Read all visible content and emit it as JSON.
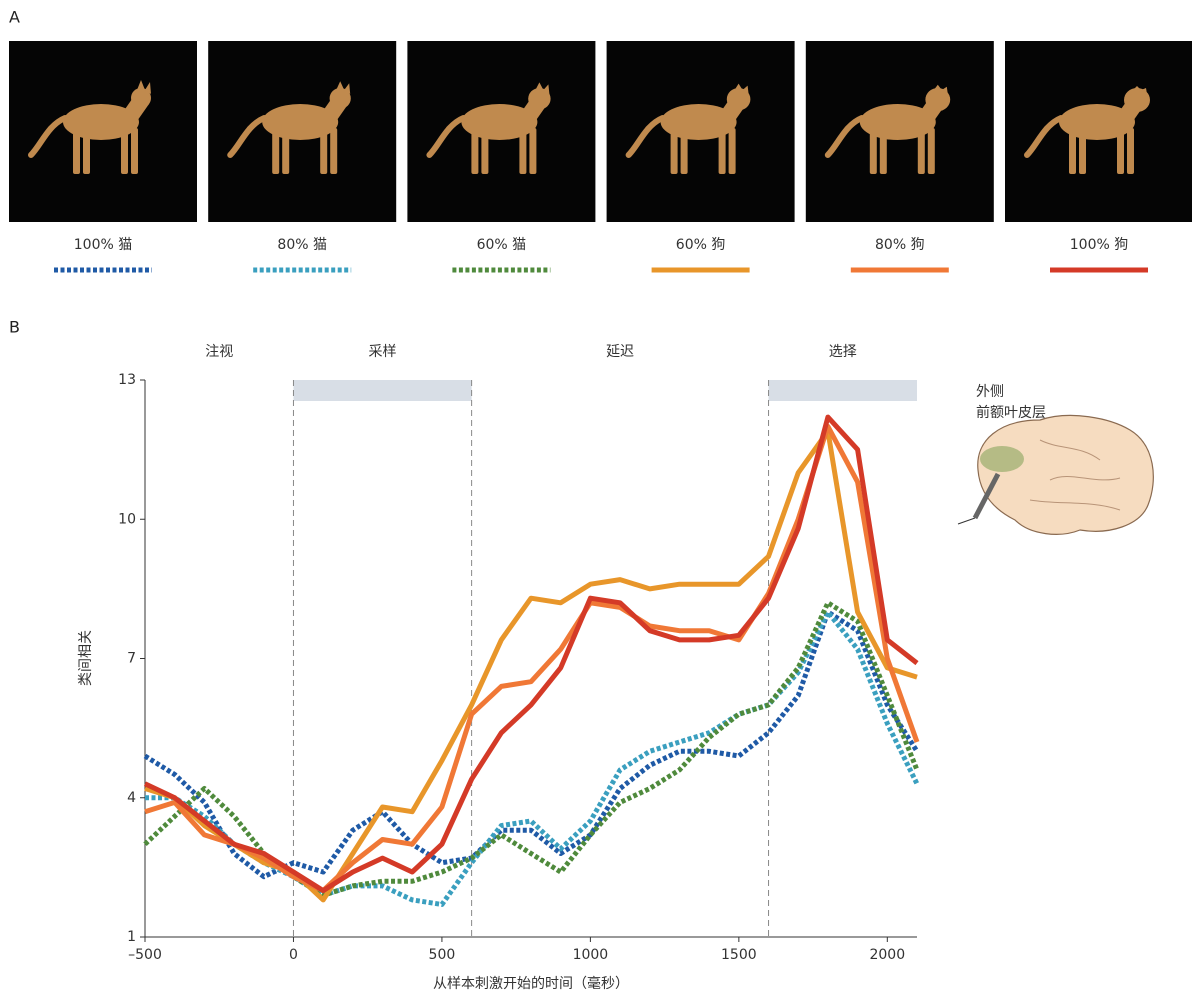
{
  "panel_labels": [
    "A",
    "B"
  ],
  "brain_label": [
    "外侧",
    "前额叶皮层"
  ],
  "chart_data": {
    "type": "line",
    "xlabel": "从样本刺激开始的时间（毫秒）",
    "ylabel": "类间相关",
    "x": [
      -500,
      -400,
      -300,
      -200,
      -100,
      0,
      100,
      200,
      300,
      400,
      500,
      600,
      700,
      800,
      900,
      1000,
      1100,
      1200,
      1300,
      1400,
      1500,
      1600,
      1700,
      1800,
      1900,
      2000,
      2100
    ],
    "series": [
      {
        "name": "100% 猫",
        "color": "#1f5aa6",
        "style": "dotted",
        "values": [
          4.9,
          4.5,
          3.9,
          2.8,
          2.3,
          2.6,
          2.4,
          3.3,
          3.7,
          3.0,
          2.6,
          2.7,
          3.3,
          3.3,
          2.8,
          3.2,
          4.2,
          4.7,
          5.0,
          5.0,
          4.9,
          5.4,
          6.2,
          8.0,
          7.6,
          6.0,
          5.0
        ]
      },
      {
        "name": "80% 猫",
        "color": "#3a9fbf",
        "style": "dotted",
        "values": [
          4.0,
          4.0,
          3.6,
          3.0,
          2.6,
          2.3,
          1.9,
          2.1,
          2.1,
          1.8,
          1.7,
          2.6,
          3.4,
          3.5,
          2.9,
          3.5,
          4.6,
          5.0,
          5.2,
          5.4,
          5.8,
          6.0,
          6.7,
          8.0,
          7.2,
          5.6,
          4.3
        ]
      },
      {
        "name": "60% 猫",
        "color": "#4f8a3c",
        "style": "dotted",
        "values": [
          3.0,
          3.6,
          4.2,
          3.6,
          2.8,
          2.3,
          1.9,
          2.1,
          2.2,
          2.2,
          2.4,
          2.7,
          3.2,
          2.8,
          2.4,
          3.2,
          3.9,
          4.2,
          4.6,
          5.3,
          5.8,
          6.0,
          6.8,
          8.2,
          7.8,
          6.2,
          4.6
        ]
      },
      {
        "name": "60% 狗",
        "color": "#e8962a",
        "style": "solid",
        "values": [
          4.2,
          4.0,
          3.4,
          3.0,
          2.6,
          2.4,
          1.8,
          2.8,
          3.8,
          3.7,
          4.8,
          6.0,
          7.4,
          8.3,
          8.2,
          8.6,
          8.7,
          8.5,
          8.6,
          8.6,
          8.6,
          9.2,
          11.0,
          11.9,
          8.0,
          6.8,
          6.6
        ]
      },
      {
        "name": "80% 狗",
        "color": "#f07836",
        "style": "solid",
        "values": [
          3.7,
          3.9,
          3.2,
          3.0,
          2.7,
          2.3,
          2.0,
          2.6,
          3.1,
          3.0,
          3.8,
          5.8,
          6.4,
          6.5,
          7.2,
          8.2,
          8.1,
          7.7,
          7.6,
          7.6,
          7.4,
          8.4,
          10.0,
          12.0,
          10.8,
          7.0,
          5.2
        ]
      },
      {
        "name": "100% 狗",
        "color": "#d43a27",
        "style": "solid",
        "values": [
          4.3,
          4.0,
          3.5,
          3.0,
          2.8,
          2.4,
          2.0,
          2.4,
          2.7,
          2.4,
          3.0,
          4.4,
          5.4,
          6.0,
          6.8,
          8.3,
          8.2,
          7.6,
          7.4,
          7.4,
          7.5,
          8.3,
          9.8,
          12.2,
          11.5,
          7.4,
          6.9
        ]
      }
    ],
    "xlim": [
      -500,
      2100
    ],
    "ylim": [
      1,
      13
    ],
    "xticks": [
      {
        "value": -500,
        "label": "–500"
      },
      0,
      500,
      1000,
      1500,
      2000
    ],
    "yticks": [
      1,
      4,
      7,
      10,
      13
    ],
    "phases": [
      {
        "label": "注视",
        "x": -250
      },
      {
        "label": "采样",
        "x": 300
      },
      {
        "label": "延迟",
        "x": 1100
      },
      {
        "label": "选择",
        "x": 1850
      }
    ],
    "shaded": [
      [
        0,
        600
      ],
      [
        1600,
        2100
      ]
    ],
    "vlines": [
      0,
      600,
      1600
    ]
  }
}
